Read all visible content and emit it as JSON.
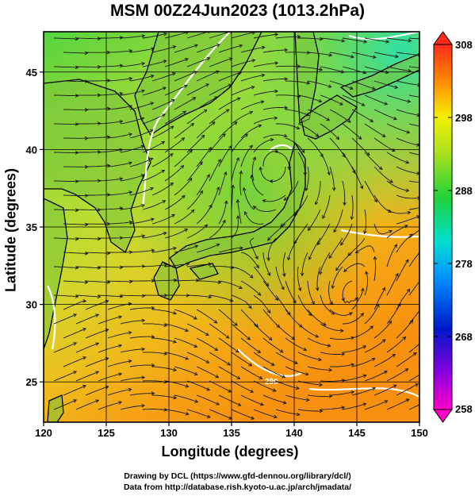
{
  "title": "MSM 00Z24Jun2023 (1013.2hPa)",
  "map": {
    "x_axis": {
      "label": "Longitude (degrees)",
      "ticks": [
        120,
        125,
        130,
        135,
        140,
        145,
        150
      ],
      "range": [
        120,
        150
      ]
    },
    "y_axis": {
      "label": "Latitude  (degrees)",
      "ticks": [
        25,
        30,
        35,
        40,
        45
      ],
      "range": [
        22.4,
        47.6
      ]
    },
    "grid": true,
    "field": "temperature shading with wind streamlines",
    "contour_label": "290",
    "colors": {
      "cold": "#1be0a8",
      "mid": "#33cc33",
      "warm": "#ff8a00",
      "coast": "#000000",
      "contour": "#ffffff"
    }
  },
  "colorbar": {
    "ticks": [
      258,
      268,
      278,
      288,
      298,
      308
    ],
    "range": [
      258,
      308
    ],
    "position": "right"
  },
  "credits": {
    "line1": "Drawing by DCL (https://www.gfd-dennou.org/library/dcl/)",
    "line2": "Data from http://database.rish.kyoto-u.ac.jp/arch/jmadata/"
  }
}
